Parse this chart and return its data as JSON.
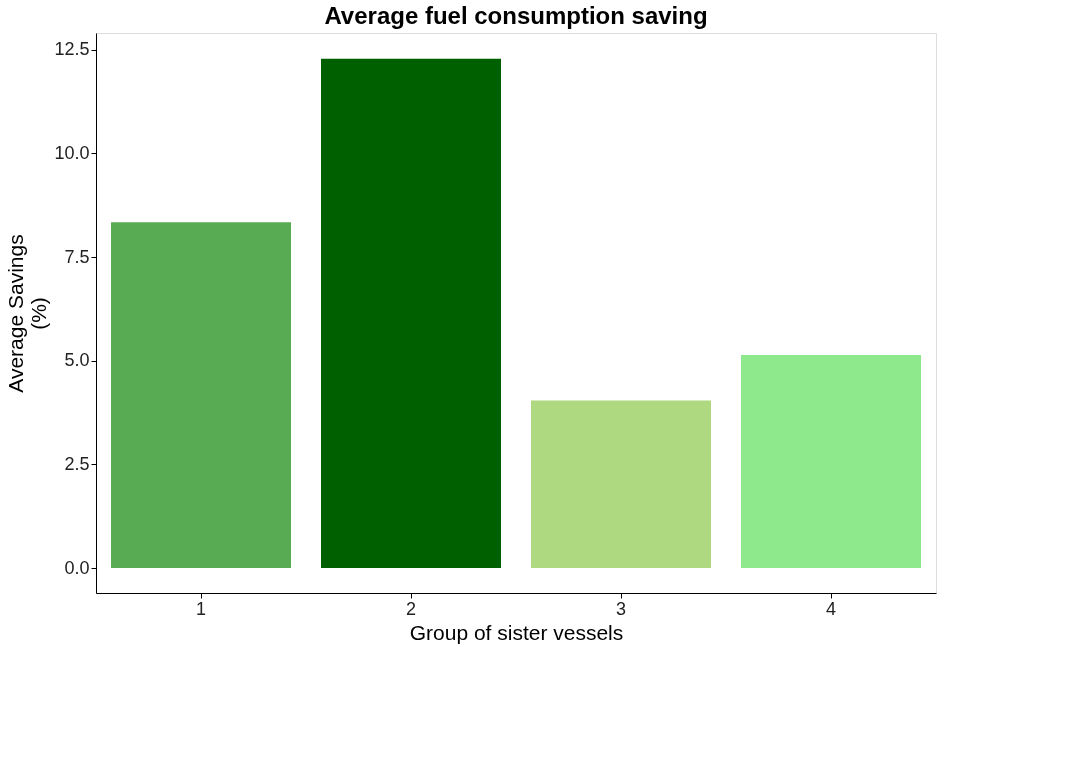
{
  "chart_data": {
    "type": "bar",
    "title": "Average fuel consumption saving",
    "xlabel": "Group of sister vessels",
    "ylabel": "Average Savings\n(%)",
    "categories": [
      "1",
      "2",
      "3",
      "4"
    ],
    "values": [
      8.34,
      12.28,
      4.04,
      5.14
    ],
    "colors": [
      "#58ab52",
      "#006000",
      "#aed980",
      "#8ee98c"
    ],
    "ylim": [
      -0.6,
      12.9
    ],
    "yticks": [
      {
        "value": 0,
        "label": "0.0"
      },
      {
        "value": 2.5,
        "label": "2.5"
      },
      {
        "value": 5,
        "label": "5.0"
      },
      {
        "value": 7.5,
        "label": "7.5"
      },
      {
        "value": 10,
        "label": "10.0"
      },
      {
        "value": 12.5,
        "label": "12.5"
      }
    ],
    "grid": false
  }
}
